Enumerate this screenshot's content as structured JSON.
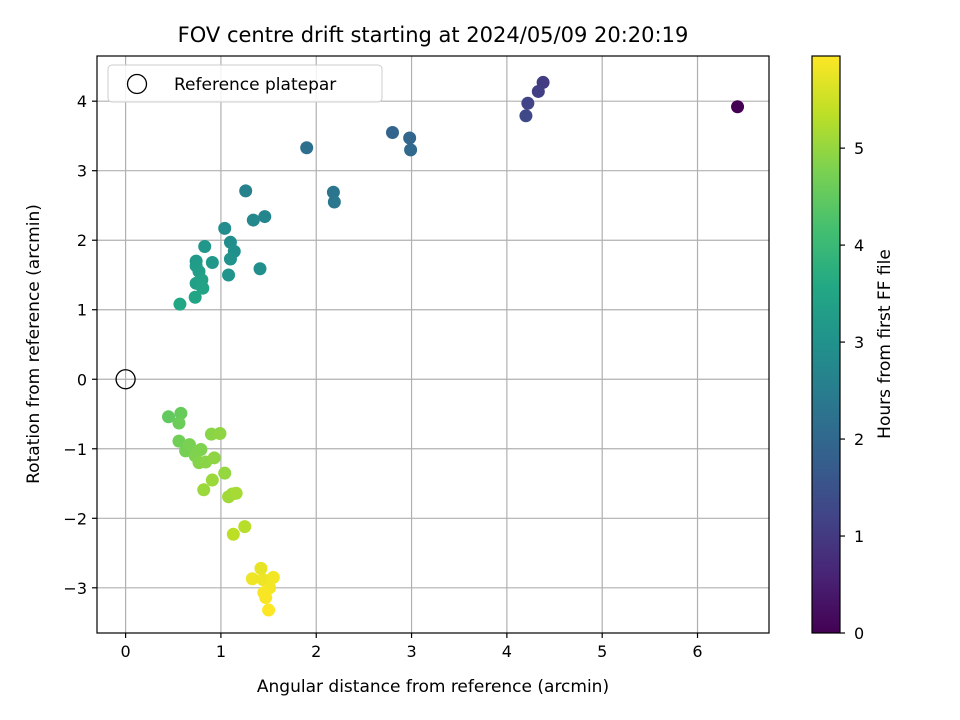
{
  "chart_data": {
    "type": "scatter",
    "title": "FOV centre drift starting at 2024/05/09 20:20:19",
    "xlabel": "Angular distance from reference (arcmin)",
    "ylabel": "Rotation from reference (arcmin)",
    "xlim": [
      -0.3,
      6.75
    ],
    "ylim": [
      -3.65,
      4.65
    ],
    "xticks": [
      0,
      1,
      2,
      3,
      4,
      5,
      6
    ],
    "yticks": [
      -3,
      -2,
      -1,
      0,
      1,
      2,
      3,
      4
    ],
    "xtick_labels": [
      "0",
      "1",
      "2",
      "3",
      "4",
      "5",
      "6"
    ],
    "ytick_labels": [
      "−3",
      "−2",
      "−1",
      "0",
      "1",
      "2",
      "3",
      "4"
    ],
    "grid": true,
    "legend": {
      "position": "top-left",
      "entries": [
        "Reference platepar"
      ]
    },
    "reference": {
      "x": 0,
      "y": 0,
      "label": "Reference platepar"
    },
    "colorbar": {
      "label": "Hours from first FF file",
      "colormap": "viridis",
      "range": [
        0,
        5.95
      ],
      "ticks": [
        0,
        1,
        2,
        3,
        4,
        5
      ],
      "tick_labels": [
        "0",
        "1",
        "2",
        "3",
        "4",
        "5"
      ]
    },
    "points": [
      {
        "x": 6.42,
        "y": 3.92,
        "hours": 0.0
      },
      {
        "x": 4.38,
        "y": 4.27,
        "hours": 1.05
      },
      {
        "x": 4.33,
        "y": 4.14,
        "hours": 1.1
      },
      {
        "x": 4.22,
        "y": 3.97,
        "hours": 1.2
      },
      {
        "x": 4.2,
        "y": 3.79,
        "hours": 1.3
      },
      {
        "x": 2.8,
        "y": 3.55,
        "hours": 1.9
      },
      {
        "x": 2.98,
        "y": 3.47,
        "hours": 1.95
      },
      {
        "x": 2.99,
        "y": 3.3,
        "hours": 2.0
      },
      {
        "x": 1.9,
        "y": 3.33,
        "hours": 2.2
      },
      {
        "x": 2.18,
        "y": 2.69,
        "hours": 2.3
      },
      {
        "x": 2.19,
        "y": 2.55,
        "hours": 2.35
      },
      {
        "x": 1.26,
        "y": 2.71,
        "hours": 2.6
      },
      {
        "x": 1.46,
        "y": 2.34,
        "hours": 2.7
      },
      {
        "x": 1.34,
        "y": 2.29,
        "hours": 2.75
      },
      {
        "x": 1.04,
        "y": 2.17,
        "hours": 2.85
      },
      {
        "x": 1.1,
        "y": 1.97,
        "hours": 2.9
      },
      {
        "x": 1.14,
        "y": 1.84,
        "hours": 2.95
      },
      {
        "x": 1.1,
        "y": 1.73,
        "hours": 3.0
      },
      {
        "x": 1.41,
        "y": 1.59,
        "hours": 2.95
      },
      {
        "x": 1.08,
        "y": 1.5,
        "hours": 3.05
      },
      {
        "x": 0.83,
        "y": 1.91,
        "hours": 3.1
      },
      {
        "x": 0.91,
        "y": 1.68,
        "hours": 3.15
      },
      {
        "x": 0.74,
        "y": 1.7,
        "hours": 3.2
      },
      {
        "x": 0.74,
        "y": 1.63,
        "hours": 3.25
      },
      {
        "x": 0.77,
        "y": 1.55,
        "hours": 3.3
      },
      {
        "x": 0.74,
        "y": 1.38,
        "hours": 3.35
      },
      {
        "x": 0.8,
        "y": 1.43,
        "hours": 3.4
      },
      {
        "x": 0.81,
        "y": 1.31,
        "hours": 3.45
      },
      {
        "x": 0.73,
        "y": 1.18,
        "hours": 3.5
      },
      {
        "x": 0.57,
        "y": 1.08,
        "hours": 3.55
      },
      {
        "x": 0.45,
        "y": -0.54,
        "hours": 4.5
      },
      {
        "x": 0.58,
        "y": -0.49,
        "hours": 4.55
      },
      {
        "x": 0.56,
        "y": -0.63,
        "hours": 4.6
      },
      {
        "x": 0.56,
        "y": -0.89,
        "hours": 4.65
      },
      {
        "x": 0.63,
        "y": -1.03,
        "hours": 4.7
      },
      {
        "x": 0.67,
        "y": -0.94,
        "hours": 4.75
      },
      {
        "x": 0.73,
        "y": -1.1,
        "hours": 4.8
      },
      {
        "x": 0.79,
        "y": -1.01,
        "hours": 4.8
      },
      {
        "x": 0.77,
        "y": -1.2,
        "hours": 4.85
      },
      {
        "x": 0.84,
        "y": -1.19,
        "hours": 4.9
      },
      {
        "x": 0.9,
        "y": -0.79,
        "hours": 4.9
      },
      {
        "x": 0.99,
        "y": -0.78,
        "hours": 4.95
      },
      {
        "x": 0.93,
        "y": -1.13,
        "hours": 4.95
      },
      {
        "x": 1.04,
        "y": -1.35,
        "hours": 5.0
      },
      {
        "x": 0.91,
        "y": -1.45,
        "hours": 5.05
      },
      {
        "x": 0.82,
        "y": -1.59,
        "hours": 5.05
      },
      {
        "x": 1.08,
        "y": -1.69,
        "hours": 5.1
      },
      {
        "x": 1.12,
        "y": -1.65,
        "hours": 5.1
      },
      {
        "x": 1.16,
        "y": -1.64,
        "hours": 5.15
      },
      {
        "x": 1.25,
        "y": -2.12,
        "hours": 5.3
      },
      {
        "x": 1.13,
        "y": -2.23,
        "hours": 5.35
      },
      {
        "x": 1.42,
        "y": -2.72,
        "hours": 5.75
      },
      {
        "x": 1.33,
        "y": -2.87,
        "hours": 5.8
      },
      {
        "x": 1.44,
        "y": -2.88,
        "hours": 5.8
      },
      {
        "x": 1.55,
        "y": -2.85,
        "hours": 5.85
      },
      {
        "x": 1.51,
        "y": -3.0,
        "hours": 5.85
      },
      {
        "x": 1.45,
        "y": -3.07,
        "hours": 5.9
      },
      {
        "x": 1.47,
        "y": -3.14,
        "hours": 5.9
      },
      {
        "x": 1.5,
        "y": -3.32,
        "hours": 5.95
      }
    ]
  }
}
